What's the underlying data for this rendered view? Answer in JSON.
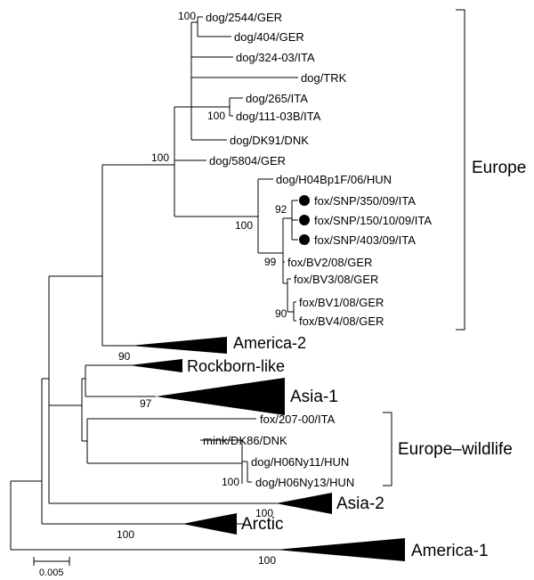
{
  "tree": {
    "europe_leaves": [
      "dog/2544/GER",
      "dog/404/GER",
      "dog/324-03/ITA",
      "dog/TRK",
      "dog/265/ITA",
      "dog/111-03B/ITA",
      "dog/DK91/DNK",
      "dog/5804/GER",
      "dog/H04Bp1F/06/HUN",
      "fox/SNP/350/09/ITA",
      "fox/SNP/150/10/09/ITA",
      "fox/SNP/403/09/ITA",
      "fox/BV2/08/GER",
      "fox/BV3/08/GER",
      "fox/BV1/08/GER",
      "fox/BV4/08/GER"
    ],
    "wildlife_leaves": [
      "fox/207-00/ITA",
      "mink/DK86/DNK",
      "dog/H06Ny11/HUN",
      "dog/H06Ny13/HUN"
    ],
    "collapsed_clades": [
      "America-2",
      "Rockborn-like",
      "Asia-1",
      "Asia-2",
      "Arctic",
      "America-1"
    ],
    "group_labels": {
      "europe": "Europe",
      "europe_wildlife": "Europe–wildlife"
    },
    "bootstrap": {
      "b_2544_404": "100",
      "b_265_111": "100",
      "b_europe": "100",
      "b_h04_fox": "100",
      "b_snp": "92",
      "b_fox_all": "99",
      "b_bv": "90",
      "b_america2": "90",
      "b_asia1": "97",
      "b_ny": "100",
      "b_asia2": "100",
      "b_arctic": "100",
      "b_america1": "100"
    },
    "scale_bar": {
      "label": "0.005"
    },
    "marker_color": "#000000"
  }
}
